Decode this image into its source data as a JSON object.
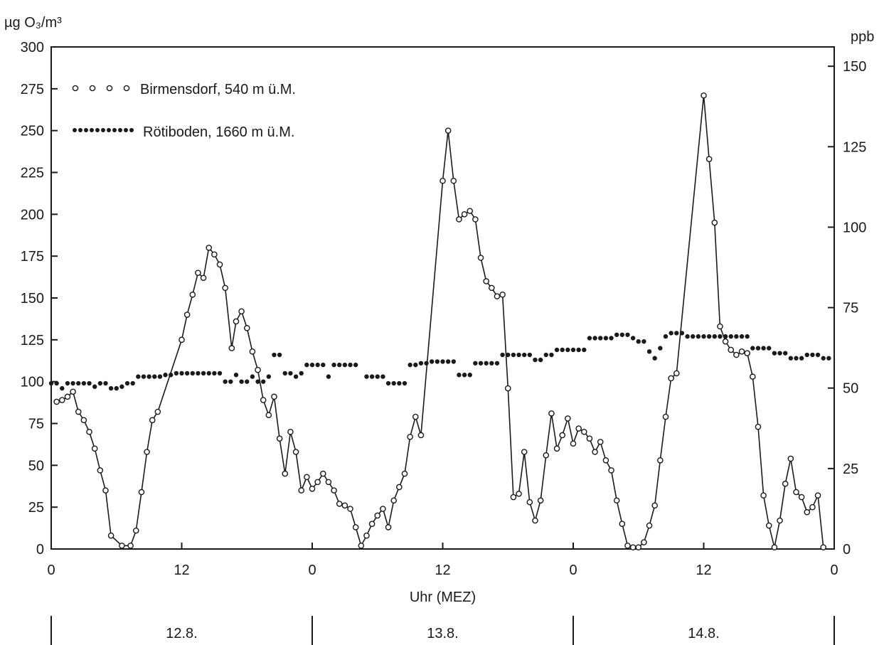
{
  "chart_data": {
    "type": "line",
    "ylabel_left": "µg O₃/m³",
    "ylabel_right": "ppb",
    "xlabel": "Uhr (MEZ)",
    "x_unit": "hours from 12.8. 00:00",
    "xlim": [
      0,
      72
    ],
    "ylim_left": [
      0,
      300
    ],
    "ylim_right": [
      0,
      156
    ],
    "x_ticks": [
      {
        "value": 0,
        "label": "0"
      },
      {
        "value": 12,
        "label": "12"
      },
      {
        "value": 24,
        "label": "0"
      },
      {
        "value": 36,
        "label": "12"
      },
      {
        "value": 48,
        "label": "0"
      },
      {
        "value": 60,
        "label": "12"
      },
      {
        "value": 72,
        "label": "0"
      }
    ],
    "y_ticks_left": [
      "0",
      "25",
      "50",
      "75",
      "100",
      "125",
      "150",
      "175",
      "200",
      "225",
      "250",
      "275",
      "300"
    ],
    "y_ticks_right": [
      {
        "value": 0,
        "label": "0"
      },
      {
        "value": 25,
        "label": "25"
      },
      {
        "value": 50,
        "label": "50"
      },
      {
        "value": 75,
        "label": "75"
      },
      {
        "value": 100,
        "label": "100"
      },
      {
        "value": 125,
        "label": "125"
      },
      {
        "value": 150,
        "label": "150"
      }
    ],
    "days": [
      "12.8.",
      "13.8.",
      "14.8."
    ],
    "grid": false,
    "legend_position": "top-left",
    "series": [
      {
        "name": "Birmensdorf, 540 m ü.M.",
        "marker": "open-circle",
        "connected": true,
        "points": [
          [
            0.5,
            88
          ],
          [
            1.0,
            89
          ],
          [
            1.5,
            91
          ],
          [
            2.0,
            94
          ],
          [
            2.5,
            82
          ],
          [
            3.0,
            77
          ],
          [
            3.5,
            70
          ],
          [
            4.0,
            60
          ],
          [
            4.5,
            47
          ],
          [
            5.0,
            35
          ],
          [
            5.5,
            8
          ],
          [
            6.5,
            2
          ],
          [
            7.3,
            2
          ],
          [
            7.8,
            11
          ],
          [
            8.3,
            34
          ],
          [
            8.8,
            58
          ],
          [
            9.3,
            77
          ],
          [
            9.8,
            82
          ],
          [
            12.0,
            125
          ],
          [
            12.5,
            140
          ],
          [
            13.0,
            152
          ],
          [
            13.5,
            165
          ],
          [
            14.0,
            162
          ],
          [
            14.5,
            180
          ],
          [
            15.0,
            176
          ],
          [
            15.5,
            170
          ],
          [
            16.0,
            156
          ],
          [
            16.6,
            120
          ],
          [
            17.0,
            136
          ],
          [
            17.5,
            142
          ],
          [
            18.0,
            132
          ],
          [
            18.5,
            118
          ],
          [
            19.0,
            107
          ],
          [
            19.5,
            89
          ],
          [
            20.0,
            80
          ],
          [
            20.5,
            91
          ],
          [
            21.0,
            66
          ],
          [
            21.5,
            45
          ],
          [
            22.0,
            70
          ],
          [
            22.5,
            58
          ],
          [
            23.0,
            35
          ],
          [
            23.5,
            43
          ],
          [
            24.0,
            36
          ],
          [
            24.5,
            40
          ],
          [
            25.0,
            45
          ],
          [
            25.5,
            40
          ],
          [
            26.0,
            35
          ],
          [
            26.5,
            27
          ],
          [
            27.0,
            26
          ],
          [
            27.5,
            24
          ],
          [
            28.0,
            13
          ],
          [
            28.5,
            2
          ],
          [
            29.0,
            8
          ],
          [
            29.5,
            15
          ],
          [
            30.0,
            20
          ],
          [
            30.5,
            24
          ],
          [
            31.0,
            13
          ],
          [
            31.5,
            29
          ],
          [
            32.0,
            37
          ],
          [
            32.5,
            45
          ],
          [
            33.0,
            67
          ],
          [
            33.5,
            79
          ],
          [
            34.0,
            68
          ],
          [
            36.0,
            220
          ],
          [
            36.5,
            250
          ],
          [
            37.0,
            220
          ],
          [
            37.5,
            197
          ],
          [
            38.0,
            200
          ],
          [
            38.5,
            202
          ],
          [
            39.0,
            197
          ],
          [
            39.5,
            174
          ],
          [
            40.0,
            160
          ],
          [
            40.5,
            156
          ],
          [
            41.0,
            151
          ],
          [
            41.5,
            152
          ],
          [
            42.0,
            96
          ],
          [
            42.5,
            31
          ],
          [
            43.0,
            33
          ],
          [
            43.5,
            58
          ],
          [
            44.0,
            28
          ],
          [
            44.5,
            17
          ],
          [
            45.0,
            29
          ],
          [
            45.5,
            56
          ],
          [
            46.0,
            81
          ],
          [
            46.5,
            60
          ],
          [
            47.0,
            68
          ],
          [
            47.5,
            78
          ],
          [
            48.0,
            63
          ],
          [
            48.5,
            72
          ],
          [
            49.0,
            70
          ],
          [
            49.5,
            66
          ],
          [
            50.0,
            58
          ],
          [
            50.5,
            64
          ],
          [
            51.0,
            53
          ],
          [
            51.5,
            47
          ],
          [
            52.0,
            29
          ],
          [
            52.5,
            15
          ],
          [
            53.0,
            2
          ],
          [
            53.5,
            1
          ],
          [
            54.0,
            1
          ],
          [
            54.5,
            4
          ],
          [
            55.0,
            14
          ],
          [
            55.5,
            26
          ],
          [
            56.0,
            53
          ],
          [
            56.5,
            79
          ],
          [
            57.0,
            102
          ],
          [
            57.5,
            105
          ],
          [
            60.0,
            271
          ],
          [
            60.5,
            233
          ],
          [
            61.0,
            195
          ],
          [
            61.5,
            133
          ],
          [
            62.0,
            124
          ],
          [
            62.5,
            119
          ],
          [
            63.0,
            116
          ],
          [
            63.5,
            118
          ],
          [
            64.0,
            117
          ],
          [
            64.5,
            103
          ],
          [
            65.0,
            73
          ],
          [
            65.5,
            32
          ],
          [
            66.0,
            14
          ],
          [
            66.5,
            1
          ],
          [
            67.0,
            17
          ],
          [
            67.5,
            39
          ],
          [
            68.0,
            54
          ],
          [
            68.5,
            34
          ],
          [
            69.0,
            31
          ],
          [
            69.5,
            22
          ],
          [
            70.0,
            25
          ],
          [
            70.5,
            32
          ],
          [
            71.0,
            1
          ]
        ]
      },
      {
        "name": "Rötiboden, 1660 m ü.M.",
        "marker": "filled-dot",
        "connected": false,
        "points": [
          [
            0,
            99
          ],
          [
            0.5,
            99
          ],
          [
            1.0,
            96
          ],
          [
            1.5,
            99
          ],
          [
            2.0,
            99
          ],
          [
            2.5,
            99
          ],
          [
            3.0,
            99
          ],
          [
            3.5,
            99
          ],
          [
            4.0,
            97
          ],
          [
            4.5,
            99
          ],
          [
            5.0,
            99
          ],
          [
            5.5,
            96
          ],
          [
            6.0,
            96
          ],
          [
            6.5,
            97
          ],
          [
            7.0,
            99
          ],
          [
            7.5,
            99
          ],
          [
            8.0,
            103
          ],
          [
            8.5,
            103
          ],
          [
            9.0,
            103
          ],
          [
            9.5,
            103
          ],
          [
            10.0,
            103
          ],
          [
            10.5,
            104
          ],
          [
            11.0,
            104
          ],
          [
            11.5,
            105
          ],
          [
            12.0,
            105
          ],
          [
            12.5,
            105
          ],
          [
            13.0,
            105
          ],
          [
            13.5,
            105
          ],
          [
            14.0,
            105
          ],
          [
            14.5,
            105
          ],
          [
            15.0,
            105
          ],
          [
            15.5,
            105
          ],
          [
            16.0,
            100
          ],
          [
            16.5,
            100
          ],
          [
            17.0,
            104
          ],
          [
            17.5,
            100
          ],
          [
            18.0,
            100
          ],
          [
            18.5,
            103
          ],
          [
            19.0,
            100
          ],
          [
            19.5,
            100
          ],
          [
            20.0,
            103
          ],
          [
            20.5,
            116
          ],
          [
            21.0,
            116
          ],
          [
            21.5,
            105
          ],
          [
            22.0,
            105
          ],
          [
            22.5,
            103
          ],
          [
            23.0,
            105
          ],
          [
            23.5,
            110
          ],
          [
            24.0,
            110
          ],
          [
            24.5,
            110
          ],
          [
            25.0,
            110
          ],
          [
            25.5,
            103
          ],
          [
            26.0,
            110
          ],
          [
            26.5,
            110
          ],
          [
            27.0,
            110
          ],
          [
            27.5,
            110
          ],
          [
            28.0,
            110
          ],
          [
            29.0,
            103
          ],
          [
            29.5,
            103
          ],
          [
            30.0,
            103
          ],
          [
            30.5,
            103
          ],
          [
            31.0,
            99
          ],
          [
            31.5,
            99
          ],
          [
            32.0,
            99
          ],
          [
            32.5,
            99
          ],
          [
            33.0,
            110
          ],
          [
            33.5,
            110
          ],
          [
            34.0,
            111
          ],
          [
            34.5,
            111
          ],
          [
            35.0,
            112
          ],
          [
            35.5,
            112
          ],
          [
            36.0,
            112
          ],
          [
            36.5,
            112
          ],
          [
            37.0,
            112
          ],
          [
            37.5,
            104
          ],
          [
            38.0,
            104
          ],
          [
            38.5,
            104
          ],
          [
            39.0,
            111
          ],
          [
            39.5,
            111
          ],
          [
            40.0,
            111
          ],
          [
            40.5,
            111
          ],
          [
            41.0,
            111
          ],
          [
            41.5,
            116
          ],
          [
            42.0,
            116
          ],
          [
            42.5,
            116
          ],
          [
            43.0,
            116
          ],
          [
            43.5,
            116
          ],
          [
            44.0,
            116
          ],
          [
            44.5,
            113
          ],
          [
            45.0,
            113
          ],
          [
            45.5,
            116
          ],
          [
            46.0,
            116
          ],
          [
            46.5,
            119
          ],
          [
            47.0,
            119
          ],
          [
            47.5,
            119
          ],
          [
            48.0,
            119
          ],
          [
            48.5,
            119
          ],
          [
            49.0,
            119
          ],
          [
            49.5,
            126
          ],
          [
            50.0,
            126
          ],
          [
            50.5,
            126
          ],
          [
            51.0,
            126
          ],
          [
            51.5,
            126
          ],
          [
            52.0,
            128
          ],
          [
            52.5,
            128
          ],
          [
            53.0,
            128
          ],
          [
            53.5,
            126
          ],
          [
            54.0,
            124
          ],
          [
            54.5,
            124
          ],
          [
            55.0,
            118
          ],
          [
            55.5,
            114
          ],
          [
            56.0,
            120
          ],
          [
            56.5,
            127
          ],
          [
            57.0,
            129
          ],
          [
            57.5,
            129
          ],
          [
            58.0,
            129
          ],
          [
            58.5,
            127
          ],
          [
            59.0,
            127
          ],
          [
            59.5,
            127
          ],
          [
            60.0,
            127
          ],
          [
            60.5,
            127
          ],
          [
            61.0,
            127
          ],
          [
            61.5,
            127
          ],
          [
            62.0,
            127
          ],
          [
            62.5,
            127
          ],
          [
            63.0,
            127
          ],
          [
            63.5,
            127
          ],
          [
            64.0,
            127
          ],
          [
            64.5,
            120
          ],
          [
            65.0,
            120
          ],
          [
            65.5,
            120
          ],
          [
            66.0,
            120
          ],
          [
            66.5,
            117
          ],
          [
            67.0,
            117
          ],
          [
            67.5,
            117
          ],
          [
            68.0,
            114
          ],
          [
            68.5,
            114
          ],
          [
            69.0,
            114
          ],
          [
            69.5,
            116
          ],
          [
            70.0,
            116
          ],
          [
            70.5,
            116
          ],
          [
            71.0,
            114
          ],
          [
            71.5,
            114
          ]
        ]
      }
    ]
  }
}
